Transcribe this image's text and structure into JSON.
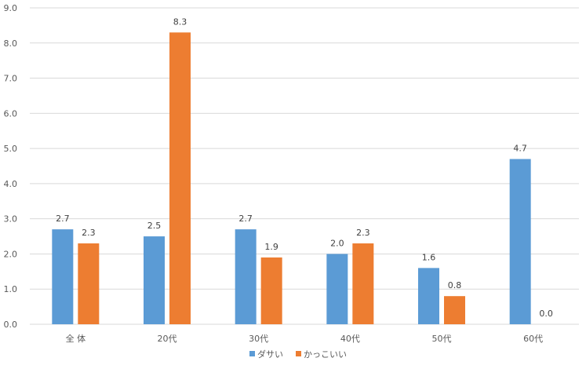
{
  "chart_data": {
    "type": "bar",
    "title": "",
    "xlabel": "",
    "ylabel": "",
    "ylim": [
      0,
      9
    ],
    "y_ticks": [
      "0.0",
      "1.0",
      "2.0",
      "3.0",
      "4.0",
      "5.0",
      "6.0",
      "7.0",
      "8.0",
      "9.0"
    ],
    "grid": true,
    "legend_position": "bottom",
    "categories": [
      "全 体",
      "20代",
      "30代",
      "40代",
      "50代",
      "60代"
    ],
    "series": [
      {
        "name": "ダサい",
        "color": "#5b9bd5",
        "values": [
          2.7,
          2.5,
          2.7,
          2.0,
          1.6,
          4.7
        ],
        "labels": [
          "2.7",
          "2.5",
          "2.7",
          "2.0",
          "1.6",
          "4.7"
        ]
      },
      {
        "name": "かっこいい",
        "color": "#ed7d31",
        "values": [
          2.3,
          8.3,
          1.9,
          2.3,
          0.8,
          0.0
        ],
        "labels": [
          "2.3",
          "8.3",
          "1.9",
          "2.3",
          "0.8",
          "0.0"
        ]
      }
    ]
  }
}
